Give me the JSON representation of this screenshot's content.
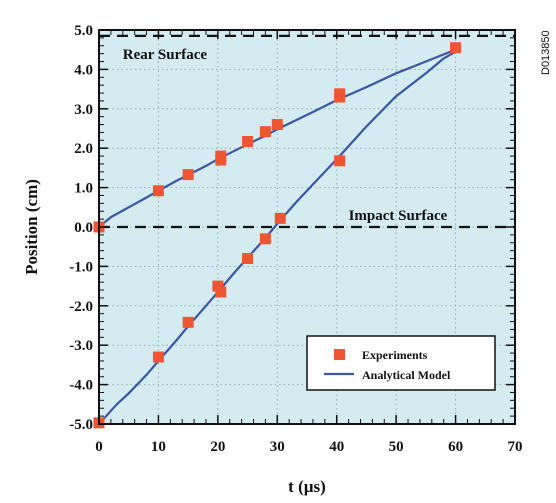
{
  "chart_data": {
    "type": "scatter",
    "xlabel": "t (µs)",
    "ylabel": "Position (cm)",
    "xlim": [
      0,
      70
    ],
    "ylim": [
      -5.0,
      5.0
    ],
    "x_ticks": [
      "0",
      "10",
      "20",
      "30",
      "40",
      "50",
      "60",
      "70"
    ],
    "y_ticks": [
      "-5.0",
      "-4.0",
      "-3.0",
      "-2.0",
      "-1.0",
      "0.0",
      "1.0",
      "2.0",
      "3.0",
      "4.0",
      "5.0"
    ],
    "grid": true,
    "legend_position": "bottom-right",
    "reference_lines": [
      {
        "label": "Rear Surface",
        "y": 4.85
      },
      {
        "label": "Impact Surface",
        "y": 0.0
      }
    ],
    "series": [
      {
        "name": "Experiments",
        "kind": "markers",
        "color": "#ee5533",
        "points": [
          [
            0,
            0.0
          ],
          [
            10,
            0.92
          ],
          [
            15,
            1.33
          ],
          [
            20.5,
            1.7
          ],
          [
            20.5,
            1.8
          ],
          [
            25,
            2.17
          ],
          [
            28,
            2.42
          ],
          [
            30,
            2.6
          ],
          [
            40.5,
            3.3
          ],
          [
            40.5,
            3.38
          ],
          [
            60,
            4.55
          ],
          [
            0,
            -4.97
          ],
          [
            10,
            -3.3
          ],
          [
            15,
            -2.42
          ],
          [
            20,
            -1.5
          ],
          [
            20.5,
            -1.65
          ],
          [
            25,
            -0.8
          ],
          [
            28,
            -0.3
          ],
          [
            30.5,
            0.22
          ],
          [
            40.5,
            1.68
          ]
        ]
      },
      {
        "name": "Analytical Model",
        "kind": "line",
        "color": "#3a55a8",
        "curves": [
          [
            [
              0,
              0.0
            ],
            [
              2,
              0.25
            ],
            [
              5,
              0.5
            ],
            [
              8,
              0.75
            ],
            [
              10,
              0.92
            ],
            [
              13,
              1.17
            ],
            [
              15,
              1.32
            ],
            [
              18,
              1.55
            ],
            [
              20,
              1.72
            ],
            [
              23,
              1.95
            ],
            [
              25,
              2.1
            ],
            [
              28,
              2.32
            ],
            [
              30,
              2.48
            ],
            [
              33,
              2.7
            ],
            [
              36,
              2.92
            ],
            [
              40,
              3.22
            ],
            [
              45,
              3.55
            ],
            [
              50,
              3.9
            ],
            [
              55,
              4.2
            ],
            [
              58,
              4.38
            ],
            [
              60,
              4.5
            ]
          ],
          [
            [
              0,
              -5.0
            ],
            [
              3,
              -4.5
            ],
            [
              5,
              -4.22
            ],
            [
              8,
              -3.75
            ],
            [
              10,
              -3.4
            ],
            [
              13,
              -2.88
            ],
            [
              15,
              -2.52
            ],
            [
              18,
              -2.0
            ],
            [
              20,
              -1.65
            ],
            [
              23,
              -1.12
            ],
            [
              25,
              -0.78
            ],
            [
              28,
              -0.28
            ],
            [
              30,
              0.08
            ],
            [
              33,
              0.6
            ],
            [
              36,
              1.08
            ],
            [
              40,
              1.72
            ],
            [
              45,
              2.55
            ],
            [
              50,
              3.32
            ],
            [
              55,
              3.9
            ],
            [
              58,
              4.28
            ],
            [
              60,
              4.45
            ]
          ]
        ]
      }
    ]
  },
  "figure_id": "D013850"
}
